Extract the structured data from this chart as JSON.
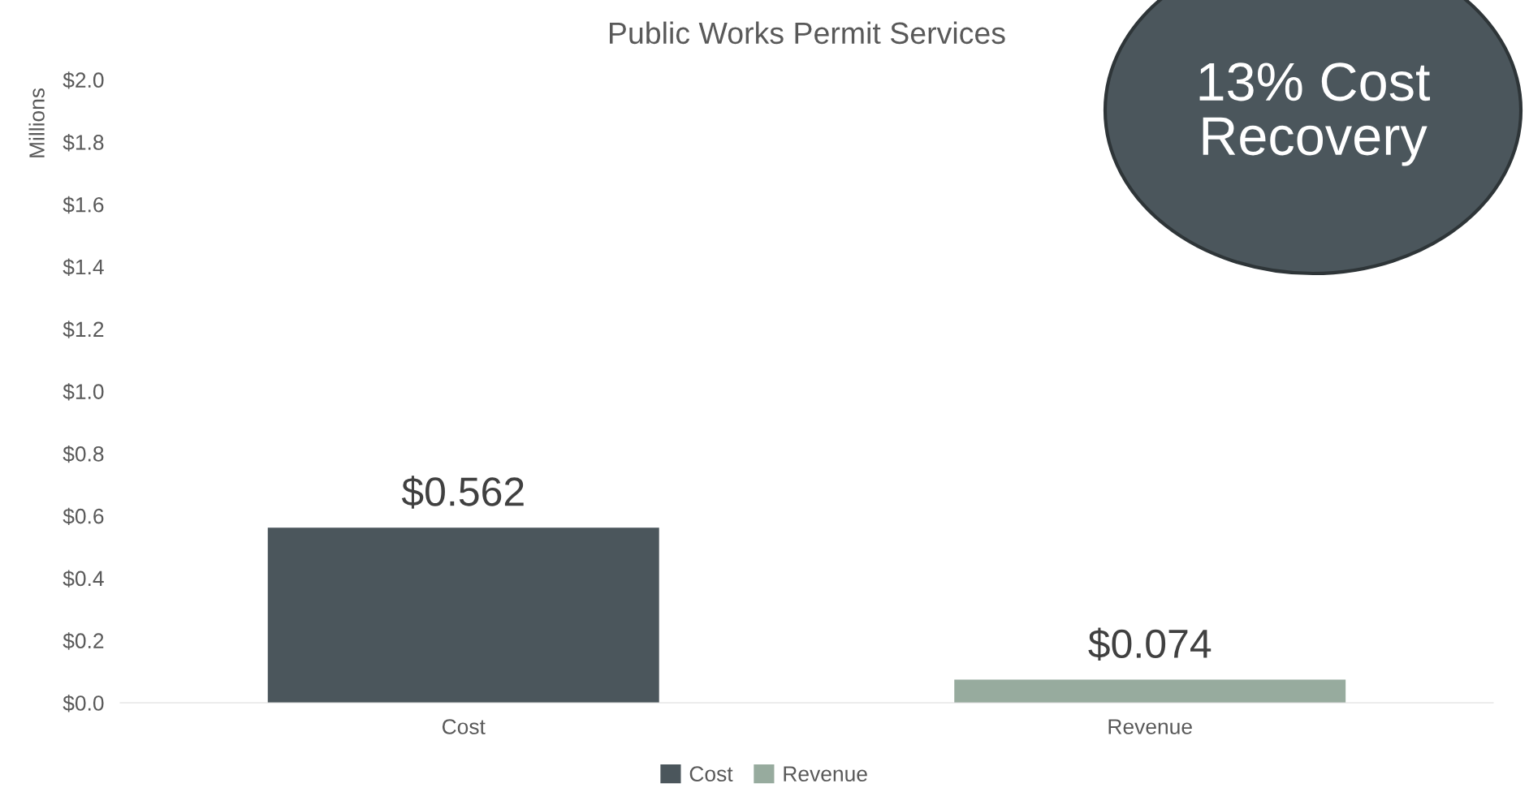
{
  "chart_data": {
    "type": "bar",
    "title": "Public Works Permit Services",
    "ylabel": "Millions",
    "categories": [
      "Cost",
      "Revenue"
    ],
    "series": [
      {
        "name": "Cost",
        "color": "#4b565c",
        "values": [
          0.562,
          null
        ],
        "value_labels": [
          "$0.562",
          null
        ]
      },
      {
        "name": "Revenue",
        "color": "#97ab9e",
        "values": [
          null,
          0.074
        ],
        "value_labels": [
          null,
          "$0.074"
        ]
      }
    ],
    "ylim": [
      0,
      2.0
    ],
    "yticks": [
      {
        "value": 0,
        "label": "$0.0"
      },
      {
        "value": 0.2,
        "label": "$0.2"
      },
      {
        "value": 0.4,
        "label": "$0.4"
      },
      {
        "value": 0.6,
        "label": "$0.6"
      },
      {
        "value": 0.8,
        "label": "$0.8"
      },
      {
        "value": 1.0,
        "label": "$1.0"
      },
      {
        "value": 1.2,
        "label": "$1.2"
      },
      {
        "value": 1.4,
        "label": "$1.4"
      },
      {
        "value": 1.6,
        "label": "$1.6"
      },
      {
        "value": 1.8,
        "label": "$1.8"
      },
      {
        "value": 2.0,
        "label": "$2.0"
      }
    ],
    "annotations": [
      "13% Cost\nRecovery"
    ],
    "grid": false,
    "legend": "bottom"
  }
}
